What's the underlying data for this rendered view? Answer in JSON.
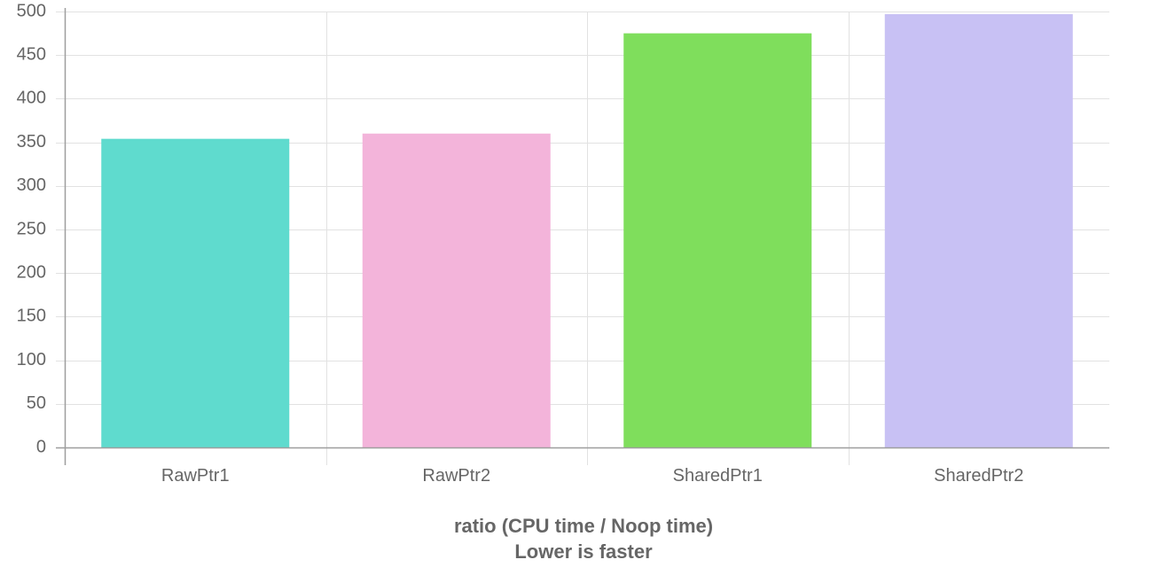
{
  "chart_data": {
    "type": "bar",
    "categories": [
      "RawPtr1",
      "RawPtr2",
      "SharedPtr1",
      "SharedPtr2"
    ],
    "values": [
      354,
      360,
      475,
      497
    ],
    "bar_colors": [
      "#5fdbce",
      "#f3b4da",
      "#7fde5c",
      "#c8c1f4"
    ],
    "xlabel": "ratio (CPU time / Noop time)",
    "subtitle": "Lower is faster",
    "ylabel": "",
    "ylim": [
      0,
      500
    ],
    "yticks": [
      0,
      50,
      100,
      150,
      200,
      250,
      300,
      350,
      400,
      450,
      500
    ],
    "grid": true,
    "legend": "none"
  },
  "colors": {
    "grid": "#e2e2e2",
    "axis": "#9e9e9e",
    "text": "#666666"
  }
}
